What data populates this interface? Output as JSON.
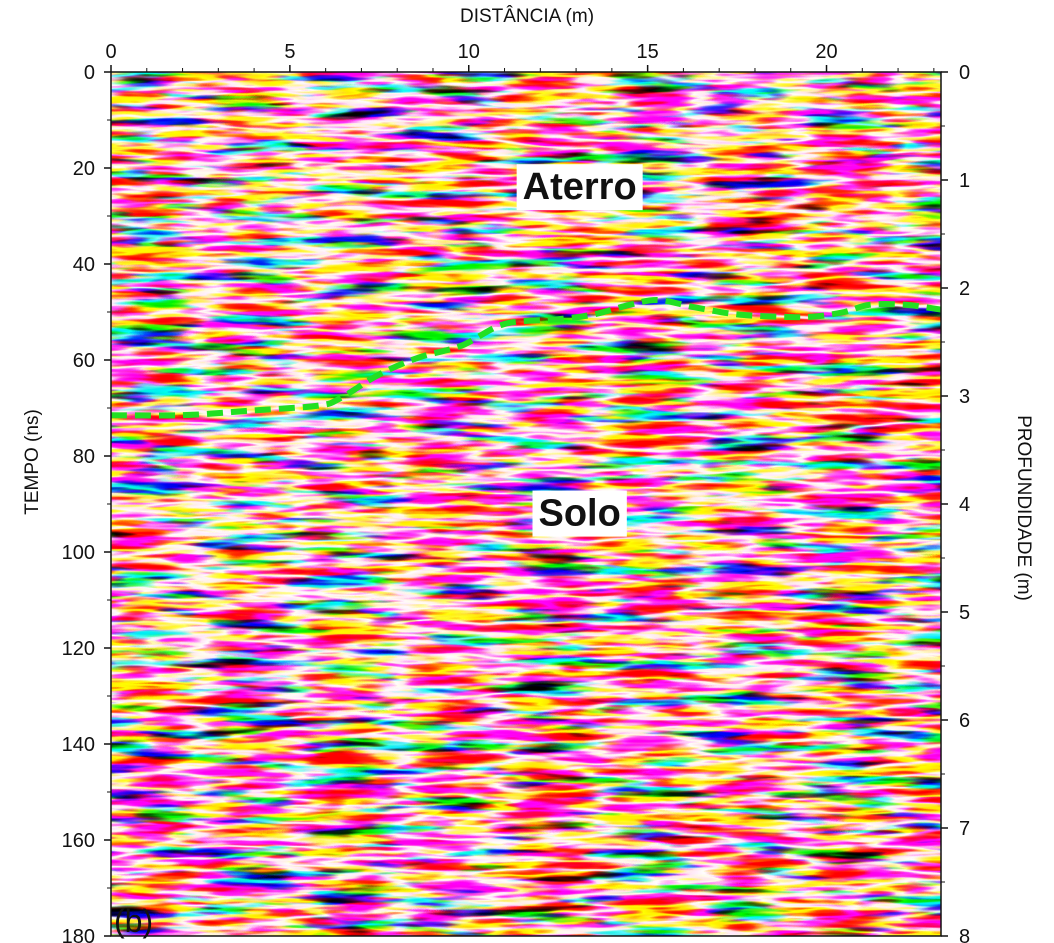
{
  "chart_data": {
    "type": "heatmap",
    "title": "",
    "xlabel": "DISTÂNCIA (m)",
    "ylabel_left": "TEMPO (ns)",
    "ylabel_right": "PROFUNDIDADE (m)",
    "xlim": [
      0,
      23.2
    ],
    "ylim_time": [
      0,
      180
    ],
    "ylim_depth": [
      0,
      8
    ],
    "x_ticks": [
      "0",
      "5",
      "10",
      "15",
      "20"
    ],
    "time_ticks": [
      "0",
      "20",
      "40",
      "60",
      "80",
      "100",
      "120",
      "140",
      "160",
      "180"
    ],
    "depth_ticks": [
      "0",
      "1",
      "2",
      "3",
      "4",
      "5",
      "6",
      "7",
      "8"
    ],
    "colormap": {
      "negative": "#000000",
      "zero": "#ffffff",
      "positive": "#ff0000"
    },
    "interface": {
      "color": "#22e022",
      "style": "dashed",
      "points": [
        [
          0,
          71.5
        ],
        [
          2,
          71.5
        ],
        [
          4,
          70.5
        ],
        [
          5.8,
          69.5
        ],
        [
          6.4,
          68
        ],
        [
          7.5,
          63
        ],
        [
          8.6,
          59.5
        ],
        [
          9.8,
          57
        ],
        [
          11,
          52.5
        ],
        [
          12.5,
          51.5
        ],
        [
          13.5,
          50.5
        ],
        [
          14.5,
          48.5
        ],
        [
          15.3,
          47.5
        ],
        [
          16.3,
          49
        ],
        [
          17.5,
          50.5
        ],
        [
          18.8,
          51
        ],
        [
          19.6,
          51
        ],
        [
          20.5,
          50
        ],
        [
          21.2,
          48.5
        ],
        [
          22.2,
          48.5
        ],
        [
          23.2,
          49.5
        ]
      ]
    },
    "annotations": [
      {
        "label": "Aterro",
        "x": 13.1,
        "y": 24
      },
      {
        "label": "Solo",
        "x": 13.1,
        "y": 92
      }
    ],
    "panel_label": "(b)"
  }
}
